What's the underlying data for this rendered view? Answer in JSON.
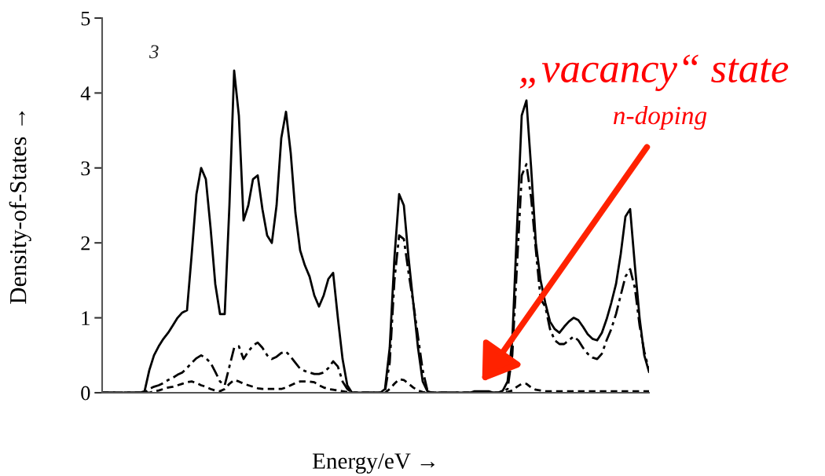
{
  "chart_data": {
    "type": "line",
    "xlabel": "Energy/eV →",
    "ylabel": "Density-of-States →",
    "categories": [
      null,
      null,
      null,
      null,
      null,
      null,
      null,
      null,
      null,
      null,
      null,
      null,
      null,
      null,
      null,
      null,
      null,
      null,
      null,
      null,
      null,
      null,
      null,
      null,
      null,
      null,
      null,
      null,
      null,
      null,
      null,
      null,
      null,
      null,
      null,
      null,
      null,
      null,
      null,
      null,
      null,
      null,
      null,
      null,
      null,
      null,
      null,
      null,
      null,
      null,
      null,
      null,
      null,
      null,
      null,
      null,
      null,
      null,
      null,
      null,
      null,
      null,
      null,
      null,
      null,
      null,
      null,
      null,
      null,
      null,
      null,
      null,
      null,
      null,
      null,
      null,
      null,
      null,
      null,
      null,
      null,
      null,
      null,
      null,
      null,
      null,
      null,
      null,
      null,
      null,
      null,
      null,
      null,
      null,
      null,
      null,
      null,
      null,
      null,
      null,
      null,
      null,
      null,
      null,
      null,
      null,
      null,
      null,
      null,
      null,
      null,
      null,
      null,
      null,
      null,
      null,
      null
    ],
    "series": [
      {
        "color": "#000000",
        "line_style": "solid",
        "values": [
          0,
          0,
          0,
          0,
          0,
          0,
          0,
          0,
          0,
          0.02,
          0.3,
          0.5,
          0.62,
          0.72,
          0.8,
          0.9,
          1.0,
          1.07,
          1.1,
          1.85,
          2.65,
          3.0,
          2.85,
          2.2,
          1.45,
          1.05,
          1.05,
          2.5,
          4.3,
          3.7,
          2.3,
          2.5,
          2.85,
          2.9,
          2.45,
          2.1,
          2.0,
          2.5,
          3.4,
          3.75,
          3.2,
          2.4,
          1.9,
          1.7,
          1.55,
          1.3,
          1.15,
          1.3,
          1.52,
          1.6,
          1.0,
          0.45,
          0.1,
          0,
          0,
          0,
          0,
          0,
          0,
          0,
          0.05,
          0.6,
          1.8,
          2.65,
          2.5,
          1.8,
          1.2,
          0.6,
          0.15,
          0.02,
          0,
          0,
          0,
          0,
          0,
          0,
          0,
          0,
          0,
          0.02,
          0.02,
          0.02,
          0.02,
          0,
          0,
          0.03,
          0.15,
          0.7,
          2.2,
          3.7,
          3.9,
          3.0,
          2.0,
          1.5,
          1.2,
          0.95,
          0.85,
          0.8,
          0.88,
          0.95,
          1.0,
          0.97,
          0.88,
          0.78,
          0.72,
          0.7,
          0.8,
          0.98,
          1.2,
          1.45,
          1.85,
          2.35,
          2.45,
          1.7,
          1.0,
          0.5,
          0.28
        ]
      },
      {
        "color": "#000000",
        "line_style": "dashed",
        "values": [
          0,
          0,
          0,
          0,
          0,
          0,
          0,
          0,
          0,
          0,
          0.05,
          0.08,
          0.1,
          0.13,
          0.17,
          0.2,
          0.24,
          0.27,
          0.33,
          0.4,
          0.46,
          0.5,
          0.46,
          0.4,
          0.28,
          0.15,
          0.1,
          0.35,
          0.6,
          0.62,
          0.45,
          0.55,
          0.63,
          0.67,
          0.6,
          0.5,
          0.45,
          0.48,
          0.53,
          0.55,
          0.48,
          0.4,
          0.32,
          0.29,
          0.27,
          0.25,
          0.25,
          0.27,
          0.33,
          0.42,
          0.35,
          0.15,
          0.05,
          0,
          0,
          0,
          0,
          0,
          0,
          0,
          0.02,
          0.4,
          1.5,
          2.1,
          2.05,
          1.6,
          1.2,
          0.75,
          0.3,
          0.03,
          0,
          0,
          0,
          0,
          0,
          0,
          0,
          0,
          0,
          0,
          0,
          0,
          0,
          0,
          0,
          0.02,
          0.05,
          0.5,
          1.7,
          2.9,
          3.05,
          2.6,
          1.9,
          1.25,
          1.15,
          0.85,
          0.7,
          0.65,
          0.65,
          0.7,
          0.75,
          0.7,
          0.6,
          0.52,
          0.47,
          0.45,
          0.52,
          0.7,
          0.85,
          1.05,
          1.3,
          1.55,
          1.65,
          1.4,
          0.9,
          0.55,
          0.3
        ]
      },
      {
        "color": "#000000",
        "line_style": "dotted",
        "values": [
          0,
          0,
          0,
          0,
          0,
          0,
          0,
          0,
          0,
          0,
          0,
          0.02,
          0.03,
          0.05,
          0.07,
          0.08,
          0.1,
          0.12,
          0.14,
          0.15,
          0.13,
          0.1,
          0.08,
          0.05,
          0.03,
          0.02,
          0.05,
          0.12,
          0.17,
          0.15,
          0.12,
          0.1,
          0.08,
          0.06,
          0.05,
          0.05,
          0.05,
          0.05,
          0.05,
          0.07,
          0.1,
          0.13,
          0.15,
          0.15,
          0.15,
          0.14,
          0.1,
          0.07,
          0.05,
          0.04,
          0.03,
          0.02,
          0.01,
          0,
          0,
          0,
          0,
          0,
          0,
          0,
          0,
          0.05,
          0.12,
          0.18,
          0.17,
          0.12,
          0.07,
          0.03,
          0.01,
          0,
          0,
          0,
          0,
          0,
          0,
          0,
          0,
          0,
          0,
          0,
          0,
          0,
          0,
          0,
          0,
          0,
          0.01,
          0.03,
          0.08,
          0.12,
          0.12,
          0.07,
          0.04,
          0.03,
          0.02,
          0.02,
          0.02,
          0.02,
          0.02,
          0.02,
          0.02,
          0.02,
          0.02,
          0.02,
          0.02,
          0.02,
          0.02,
          0.02,
          0.02,
          0.02,
          0.02,
          0.02,
          0.02,
          0.02,
          0.02,
          0.02,
          0.02
        ]
      }
    ],
    "ylim": [
      0,
      5
    ],
    "yticks": [
      0,
      1,
      2,
      3,
      4,
      5
    ],
    "tick_labels": "y",
    "grid": false,
    "legend": false,
    "annotations": [
      "3",
      "„vacancy“ state",
      "n-doping"
    ]
  }
}
